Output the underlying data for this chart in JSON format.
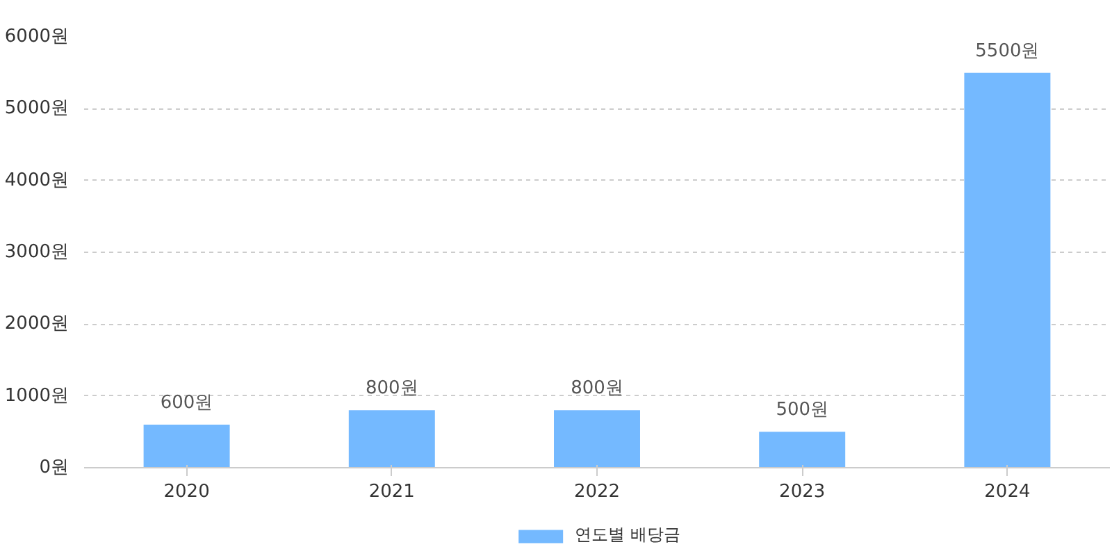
{
  "chart_data": {
    "type": "bar",
    "categories": [
      "2020",
      "2021",
      "2022",
      "2023",
      "2024"
    ],
    "series": [
      {
        "name": "연도별 배당금",
        "color": "#74b9ff",
        "values": [
          600,
          800,
          800,
          500,
          5500
        ],
        "value_labels": [
          "600원",
          "800원",
          "800원",
          "500원",
          "5500원"
        ]
      }
    ],
    "ylim": [
      0,
      6000
    ],
    "yticks": [
      {
        "value": 0,
        "label": "0원"
      },
      {
        "value": 1000,
        "label": "1000원"
      },
      {
        "value": 2000,
        "label": "2000원"
      },
      {
        "value": 3000,
        "label": "3000원"
      },
      {
        "value": 4000,
        "label": "4000원"
      },
      {
        "value": 5000,
        "label": "5000원"
      },
      {
        "value": 6000,
        "label": "6000원"
      }
    ],
    "grid": "y",
    "legend": "bottom"
  }
}
